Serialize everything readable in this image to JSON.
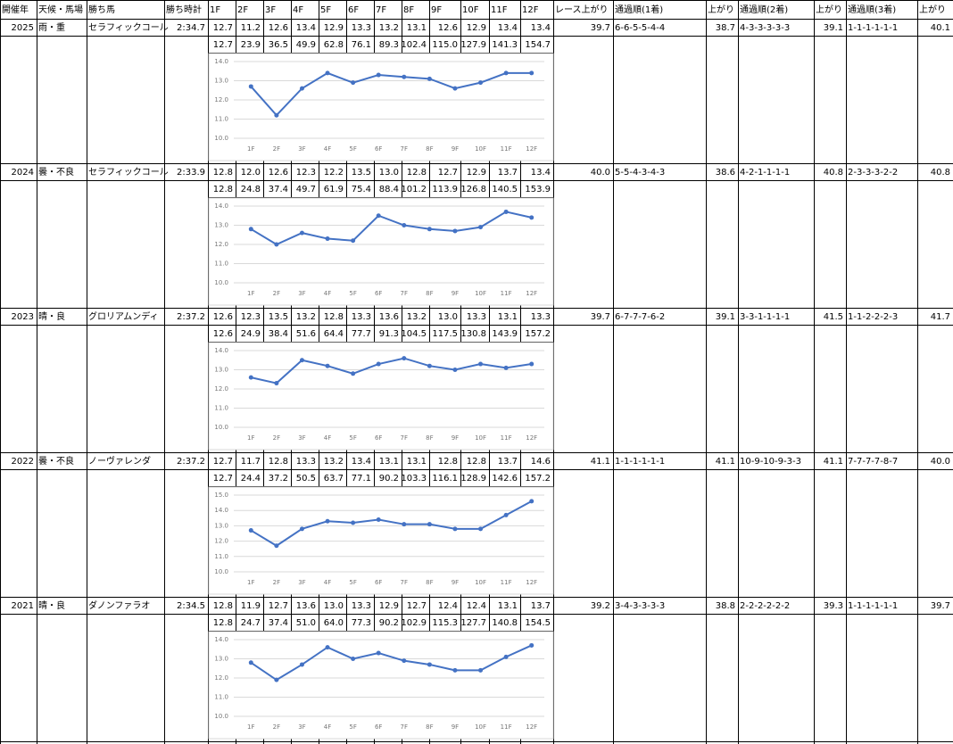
{
  "table": {
    "header": [
      "開催年",
      "天候・馬場",
      "勝ち馬",
      "勝ち時計",
      "1F",
      "2F",
      "3F",
      "4F",
      "5F",
      "6F",
      "7F",
      "8F",
      "9F",
      "10F",
      "11F",
      "12F",
      "レース上がり",
      "通過順(1着)",
      "上がり",
      "通過順(2着)",
      "上がり",
      "通過順(3着)",
      "上がり"
    ],
    "races": [
      {
        "cells": [
          "2025",
          "雨・重",
          "セラフィックコール",
          "2:34.7",
          "12.7",
          "11.2",
          "12.6",
          "13.4",
          "12.9",
          "13.3",
          "13.2",
          "13.1",
          "12.6",
          "12.9",
          "13.4",
          "13.4",
          "39.7",
          "6-6-5-5-4-4",
          "38.7",
          "4-3-3-3-3-3",
          "39.1",
          "1-1-1-1-1-1",
          "40.1"
        ],
        "cumulative": [
          "12.7",
          "23.9",
          "36.5",
          "49.9",
          "62.8",
          "76.1",
          "89.3",
          "102.4",
          "115.0",
          "127.9",
          "141.3",
          "154.7"
        ]
      },
      {
        "cells": [
          "2024",
          "曇・不良",
          "セラフィックコール",
          "2:33.9",
          "12.8",
          "12.0",
          "12.6",
          "12.3",
          "12.2",
          "13.5",
          "13.0",
          "12.8",
          "12.7",
          "12.9",
          "13.7",
          "13.4",
          "40.0",
          "5-5-4-3-4-3",
          "38.6",
          "4-2-1-1-1-1",
          "40.8",
          "2-3-3-3-2-2",
          "40.8"
        ],
        "cumulative": [
          "12.8",
          "24.8",
          "37.4",
          "49.7",
          "61.9",
          "75.4",
          "88.4",
          "101.2",
          "113.9",
          "126.8",
          "140.5",
          "153.9"
        ]
      },
      {
        "cells": [
          "2023",
          "晴・良",
          "グロリアムンディ",
          "2:37.2",
          "12.6",
          "12.3",
          "13.5",
          "13.2",
          "12.8",
          "13.3",
          "13.6",
          "13.2",
          "13.0",
          "13.3",
          "13.1",
          "13.3",
          "39.7",
          "6-7-7-7-6-2",
          "39.1",
          "3-3-1-1-1-1",
          "41.5",
          "1-1-2-2-2-3",
          "41.7"
        ],
        "cumulative": [
          "12.6",
          "24.9",
          "38.4",
          "51.6",
          "64.4",
          "77.7",
          "91.3",
          "104.5",
          "117.5",
          "130.8",
          "143.9",
          "157.2"
        ]
      },
      {
        "cells": [
          "2022",
          "曇・不良",
          "ノーヴァレンダ",
          "2:37.2",
          "12.7",
          "11.7",
          "12.8",
          "13.3",
          "13.2",
          "13.4",
          "13.1",
          "13.1",
          "12.8",
          "12.8",
          "13.7",
          "14.6",
          "41.1",
          "1-1-1-1-1-1",
          "41.1",
          "10-9-10-9-3-3",
          "41.1",
          "7-7-7-7-8-7",
          "40.0"
        ],
        "cumulative": [
          "12.7",
          "24.4",
          "37.2",
          "50.5",
          "63.7",
          "77.1",
          "90.2",
          "103.3",
          "116.1",
          "128.9",
          "142.6",
          "157.2"
        ]
      },
      {
        "cells": [
          "2021",
          "晴・良",
          "ダノンファラオ",
          "2:34.5",
          "12.8",
          "11.9",
          "12.7",
          "13.6",
          "13.0",
          "13.3",
          "12.9",
          "12.7",
          "12.4",
          "12.4",
          "13.1",
          "13.7",
          "39.2",
          "3-4-3-3-3-3",
          "38.8",
          "2-2-2-2-2-2",
          "39.3",
          "1-1-1-1-1-1",
          "39.7"
        ],
        "cumulative": [
          "12.8",
          "24.7",
          "37.4",
          "51.0",
          "64.0",
          "77.3",
          "90.2",
          "102.9",
          "115.3",
          "127.7",
          "140.8",
          "154.5"
        ]
      }
    ]
  },
  "chart_data": [
    {
      "type": "line",
      "categories": [
        "1F",
        "2F",
        "3F",
        "4F",
        "5F",
        "6F",
        "7F",
        "8F",
        "9F",
        "10F",
        "11F",
        "12F"
      ],
      "values": [
        12.7,
        11.2,
        12.6,
        13.4,
        12.9,
        13.3,
        13.2,
        13.1,
        12.6,
        12.9,
        13.4,
        13.4
      ],
      "color": "#4472c4",
      "ylim": [
        10,
        14
      ],
      "yticks": [
        {
          "value": 10,
          "label": "10.0"
        },
        {
          "value": 11,
          "label": "11.0"
        },
        {
          "value": 12,
          "label": "12.0"
        },
        {
          "value": 13,
          "label": "13.0"
        },
        {
          "value": 14,
          "label": "14.0"
        }
      ],
      "grid": true
    },
    {
      "type": "line",
      "categories": [
        "1F",
        "2F",
        "3F",
        "4F",
        "5F",
        "6F",
        "7F",
        "8F",
        "9F",
        "10F",
        "11F",
        "12F"
      ],
      "values": [
        12.8,
        12.0,
        12.6,
        12.3,
        12.2,
        13.5,
        13.0,
        12.8,
        12.7,
        12.9,
        13.7,
        13.4
      ],
      "color": "#4472c4",
      "ylim": [
        10,
        14
      ],
      "yticks": [
        {
          "value": 10,
          "label": "10.0"
        },
        {
          "value": 11,
          "label": "11.0"
        },
        {
          "value": 12,
          "label": "12.0"
        },
        {
          "value": 13,
          "label": "13.0"
        },
        {
          "value": 14,
          "label": "14.0"
        }
      ],
      "grid": true
    },
    {
      "type": "line",
      "categories": [
        "1F",
        "2F",
        "3F",
        "4F",
        "5F",
        "6F",
        "7F",
        "8F",
        "9F",
        "10F",
        "11F",
        "12F"
      ],
      "values": [
        12.6,
        12.3,
        13.5,
        13.2,
        12.8,
        13.3,
        13.6,
        13.2,
        13.0,
        13.3,
        13.1,
        13.3
      ],
      "color": "#4472c4",
      "ylim": [
        10,
        14
      ],
      "yticks": [
        {
          "value": 10,
          "label": "10.0"
        },
        {
          "value": 11,
          "label": "11.0"
        },
        {
          "value": 12,
          "label": "12.0"
        },
        {
          "value": 13,
          "label": "13.0"
        },
        {
          "value": 14,
          "label": "14.0"
        }
      ],
      "grid": true
    },
    {
      "type": "line",
      "categories": [
        "1F",
        "2F",
        "3F",
        "4F",
        "5F",
        "6F",
        "7F",
        "8F",
        "9F",
        "10F",
        "11F",
        "12F"
      ],
      "values": [
        12.7,
        11.7,
        12.8,
        13.3,
        13.2,
        13.4,
        13.1,
        13.1,
        12.8,
        12.8,
        13.7,
        14.6
      ],
      "color": "#4472c4",
      "ylim": [
        10,
        15
      ],
      "yticks": [
        {
          "value": 10,
          "label": "10.0"
        },
        {
          "value": 11,
          "label": "11.0"
        },
        {
          "value": 12,
          "label": "12.0"
        },
        {
          "value": 13,
          "label": "13.0"
        },
        {
          "value": 14,
          "label": "14.0"
        },
        {
          "value": 15,
          "label": "15.0"
        }
      ],
      "grid": true
    },
    {
      "type": "line",
      "categories": [
        "1F",
        "2F",
        "3F",
        "4F",
        "5F",
        "6F",
        "7F",
        "8F",
        "9F",
        "10F",
        "11F",
        "12F"
      ],
      "values": [
        12.8,
        11.9,
        12.7,
        13.6,
        13.0,
        13.3,
        12.9,
        12.7,
        12.4,
        12.4,
        13.1,
        13.7
      ],
      "color": "#4472c4",
      "ylim": [
        10,
        14
      ],
      "yticks": [
        {
          "value": 10,
          "label": "10.0"
        },
        {
          "value": 11,
          "label": "11.0"
        },
        {
          "value": 12,
          "label": "12.0"
        },
        {
          "value": 13,
          "label": "13.0"
        },
        {
          "value": 14,
          "label": "14.0"
        }
      ],
      "grid": true
    }
  ]
}
